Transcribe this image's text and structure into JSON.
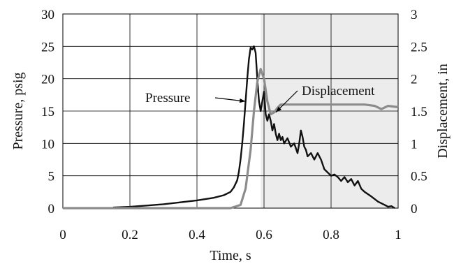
{
  "colors": {
    "pressure": "#111111",
    "displacement": "#8c8c8c",
    "grid": "#000000",
    "shade": "#ececec"
  },
  "chart_data": {
    "type": "line",
    "title": "",
    "xlabel": "Time, s",
    "ylabel": "Pressure, psig",
    "y2label": "Displacement, in",
    "xlim": [
      0,
      1
    ],
    "ylim": [
      0,
      30
    ],
    "y2lim": [
      0,
      3
    ],
    "xticks": [
      0,
      0.2,
      0.4,
      0.6,
      0.8,
      1
    ],
    "xtick_labels": [
      "0",
      "0.2",
      "0.4",
      "0.6",
      "0.8",
      "1"
    ],
    "yticks": [
      0,
      5,
      10,
      15,
      20,
      25,
      30
    ],
    "ytick_labels": [
      "0",
      "5",
      "10",
      "15",
      "20",
      "25",
      "30"
    ],
    "y2ticks": [
      0,
      0.5,
      1,
      1.5,
      2,
      2.5,
      3
    ],
    "y2tick_labels": [
      "0",
      "0.5",
      "1",
      "1.5",
      "2",
      "2.5",
      "3"
    ],
    "grid": true,
    "annotations": [
      {
        "text": "Pressure",
        "series": "Pressure",
        "target_x": 0.545,
        "target_y": 16.5
      },
      {
        "text": "Displacement",
        "series": "Displacement",
        "target_x": 0.635,
        "target_y": 1.48
      }
    ],
    "series": [
      {
        "name": "Pressure",
        "axis": "left",
        "x": [
          0.15,
          0.2,
          0.25,
          0.3,
          0.35,
          0.4,
          0.45,
          0.48,
          0.5,
          0.51,
          0.52,
          0.525,
          0.53,
          0.535,
          0.54,
          0.545,
          0.55,
          0.555,
          0.56,
          0.565,
          0.57,
          0.575,
          0.58,
          0.585,
          0.59,
          0.595,
          0.6,
          0.605,
          0.61,
          0.615,
          0.62,
          0.625,
          0.63,
          0.635,
          0.64,
          0.645,
          0.65,
          0.655,
          0.66,
          0.67,
          0.68,
          0.69,
          0.7,
          0.705,
          0.71,
          0.715,
          0.72,
          0.725,
          0.73,
          0.74,
          0.75,
          0.76,
          0.77,
          0.78,
          0.79,
          0.8,
          0.81,
          0.82,
          0.83,
          0.84,
          0.85,
          0.86,
          0.87,
          0.88,
          0.89,
          0.9,
          0.92,
          0.94,
          0.96,
          0.97,
          0.98,
          0.99
        ],
        "y": [
          0.1,
          0.2,
          0.4,
          0.6,
          0.9,
          1.2,
          1.6,
          2.0,
          2.5,
          3.2,
          4.3,
          5.6,
          7.5,
          10.0,
          13.0,
          16.5,
          20.0,
          23.0,
          24.8,
          24.5,
          25.0,
          24.0,
          20.0,
          16.5,
          15.0,
          16.5,
          18.0,
          14.5,
          13.5,
          14.5,
          13.5,
          12.0,
          13.0,
          11.5,
          10.5,
          11.5,
          10.5,
          11.0,
          10.0,
          10.8,
          9.5,
          10.0,
          8.5,
          10.0,
          12.0,
          11.0,
          9.5,
          9.0,
          8.0,
          8.5,
          7.5,
          8.5,
          7.5,
          6.0,
          5.5,
          5.0,
          5.2,
          4.8,
          4.2,
          4.8,
          4.0,
          4.5,
          3.5,
          4.2,
          3.0,
          2.5,
          1.8,
          1.0,
          0.5,
          0.2,
          0.3,
          0.0
        ]
      },
      {
        "name": "Displacement",
        "axis": "right",
        "x": [
          0,
          0.5,
          0.53,
          0.545,
          0.56,
          0.57,
          0.58,
          0.59,
          0.6,
          0.61,
          0.62,
          0.63,
          0.64,
          0.65,
          0.7,
          0.8,
          0.9,
          0.93,
          0.95,
          0.97,
          1.0
        ],
        "y": [
          0,
          0,
          0.05,
          0.3,
          0.9,
          1.5,
          1.95,
          2.15,
          2.0,
          1.65,
          1.45,
          1.48,
          1.55,
          1.6,
          1.6,
          1.6,
          1.6,
          1.58,
          1.53,
          1.58,
          1.56
        ]
      }
    ]
  }
}
